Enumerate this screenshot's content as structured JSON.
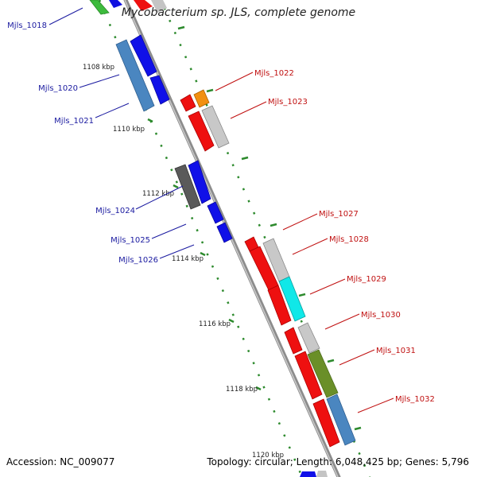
{
  "title": "Mycobacterium sp. JLS, complete genome",
  "footer": {
    "accession": "Accession: NC_009077",
    "summary": "Topology: circular; Length: 6,048,425 bp; Genes: 5,796"
  },
  "colors": {
    "backbone": "#8c8c8c",
    "tick": "#2d8a2d",
    "left_label": "#1a1aa0",
    "right_label": "#c01010"
  },
  "ticks": [
    {
      "label": "1108 kbp"
    },
    {
      "label": "1110 kbp"
    },
    {
      "label": "1112 kbp"
    },
    {
      "label": "1114 kbp"
    },
    {
      "label": "1116 kbp"
    },
    {
      "label": "1118 kbp"
    },
    {
      "label": "1120 kbp"
    }
  ],
  "genes_left": [
    {
      "name": "Mjls_1018"
    },
    {
      "name": "Mjls_1020"
    },
    {
      "name": "Mjls_1021"
    },
    {
      "name": "Mjls_1024"
    },
    {
      "name": "Mjls_1025"
    },
    {
      "name": "Mjls_1026"
    }
  ],
  "genes_right": [
    {
      "name": "Mjls_1022"
    },
    {
      "name": "Mjls_1023"
    },
    {
      "name": "Mjls_1027"
    },
    {
      "name": "Mjls_1028"
    },
    {
      "name": "Mjls_1029"
    },
    {
      "name": "Mjls_1030"
    },
    {
      "name": "Mjls_1031"
    },
    {
      "name": "Mjls_1032"
    }
  ]
}
